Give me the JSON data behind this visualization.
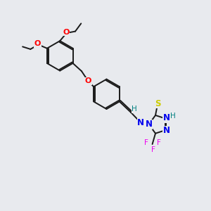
{
  "background_color": "#e8eaee",
  "bond_color": "#1a1a1a",
  "atom_colors": {
    "O": "#ff0000",
    "N": "#0000ee",
    "S": "#cccc00",
    "F": "#ee00ee",
    "H_teal": "#008080",
    "C": "#1a1a1a"
  },
  "figsize": [
    3.0,
    3.0
  ],
  "dpi": 100
}
